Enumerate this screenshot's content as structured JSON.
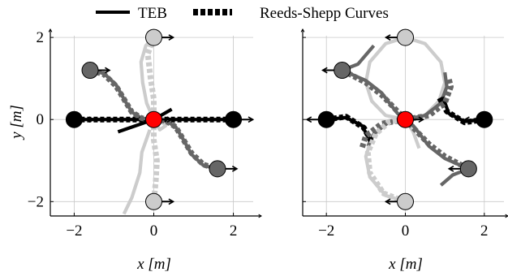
{
  "legend": {
    "teb_label": "TEB",
    "rs_label": "Reeds-Shepp Curves",
    "placement": "top-center"
  },
  "colors": {
    "black": "#000000",
    "dark_gray": "#666666",
    "light_gray": "#cccccc",
    "red": "#ff0000",
    "grid": "#c8c8c8"
  },
  "chart_data": [
    {
      "type": "line",
      "panel": "left",
      "xlabel": "x [m]",
      "ylabel": "y [m]",
      "xlim": [
        -2.6,
        2.6
      ],
      "ylim": [
        -2.35,
        2.2
      ],
      "xticks": [
        -2,
        0,
        2
      ],
      "xtick_labels": [
        "−2",
        "0",
        "2"
      ],
      "yticks": [
        -2,
        0,
        2
      ],
      "ytick_labels": [
        "−2",
        "0",
        "2"
      ],
      "grid": true,
      "goal": {
        "x": 0,
        "y": 0,
        "theta_deg": 0
      },
      "starts": [
        {
          "x": -2.0,
          "y": 0.0,
          "theta_deg": 0,
          "shade": "black"
        },
        {
          "x": 2.0,
          "y": 0.0,
          "theta_deg": 0,
          "shade": "black"
        },
        {
          "x": -1.6,
          "y": 1.2,
          "theta_deg": 0,
          "shade": "dark_gray"
        },
        {
          "x": 1.6,
          "y": -1.2,
          "theta_deg": 0,
          "shade": "dark_gray"
        },
        {
          "x": 0.0,
          "y": 2.0,
          "theta_deg": 0,
          "shade": "light_gray"
        },
        {
          "x": 0.0,
          "y": -2.0,
          "theta_deg": 0,
          "shade": "light_gray"
        }
      ],
      "series": [
        {
          "kind": "teb",
          "shade": "black",
          "points": [
            [
              -2.0,
              0.0
            ],
            [
              -1.0,
              0.0
            ],
            [
              0.0,
              0.0
            ]
          ]
        },
        {
          "kind": "teb",
          "shade": "black",
          "points": [
            [
              2.0,
              0.0
            ],
            [
              1.0,
              0.0
            ],
            [
              0.0,
              0.0
            ]
          ]
        },
        {
          "kind": "teb",
          "shade": "black",
          "points": [
            [
              0.45,
              0.25
            ],
            [
              0.0,
              0.0
            ],
            [
              -0.9,
              -0.3
            ]
          ]
        },
        {
          "kind": "teb",
          "shade": "dark_gray",
          "points": [
            [
              -1.6,
              1.2
            ],
            [
              -1.25,
              1.12
            ],
            [
              -0.95,
              0.85
            ],
            [
              -0.75,
              0.5
            ],
            [
              -0.55,
              0.18
            ],
            [
              -0.3,
              0.03
            ],
            [
              0.0,
              0.0
            ]
          ]
        },
        {
          "kind": "teb",
          "shade": "dark_gray",
          "points": [
            [
              0.0,
              0.0
            ],
            [
              0.3,
              -0.03
            ],
            [
              0.55,
              -0.18
            ],
            [
              0.75,
              -0.5
            ],
            [
              0.95,
              -0.85
            ],
            [
              1.25,
              -1.12
            ],
            [
              1.6,
              -1.2
            ]
          ]
        },
        {
          "kind": "teb",
          "shade": "light_gray",
          "points": [
            [
              0.0,
              2.0
            ],
            [
              -0.2,
              1.8
            ],
            [
              -0.32,
              1.4
            ],
            [
              -0.28,
              0.9
            ],
            [
              -0.18,
              0.4
            ],
            [
              0.0,
              0.0
            ]
          ]
        },
        {
          "kind": "teb",
          "shade": "light_gray",
          "points": [
            [
              0.0,
              0.0
            ],
            [
              0.15,
              -0.25
            ],
            [
              0.3,
              -0.15
            ],
            [
              0.2,
              -0.05
            ]
          ]
        },
        {
          "kind": "teb",
          "shade": "light_gray",
          "points": [
            [
              -0.1,
              -0.25
            ],
            [
              -0.3,
              -0.8
            ],
            [
              -0.35,
              -1.3
            ],
            [
              -0.55,
              -1.9
            ],
            [
              -0.75,
              -2.3
            ]
          ]
        },
        {
          "kind": "rs",
          "shade": "black",
          "points": [
            [
              -2.0,
              0.0
            ],
            [
              0.0,
              0.0
            ]
          ]
        },
        {
          "kind": "rs",
          "shade": "black",
          "points": [
            [
              2.0,
              0.0
            ],
            [
              0.0,
              0.0
            ]
          ]
        },
        {
          "kind": "rs",
          "shade": "dark_gray",
          "points": [
            [
              -1.6,
              1.2
            ],
            [
              -1.25,
              1.1
            ],
            [
              -0.95,
              0.82
            ],
            [
              -0.75,
              0.5
            ],
            [
              -0.55,
              0.18
            ],
            [
              -0.3,
              0.03
            ],
            [
              0.0,
              0.0
            ]
          ]
        },
        {
          "kind": "rs",
          "shade": "dark_gray",
          "points": [
            [
              0.0,
              0.0
            ],
            [
              0.3,
              -0.03
            ],
            [
              0.55,
              -0.18
            ],
            [
              0.75,
              -0.5
            ],
            [
              0.95,
              -0.82
            ],
            [
              1.25,
              -1.1
            ],
            [
              1.6,
              -1.2
            ]
          ]
        },
        {
          "kind": "rs",
          "shade": "light_gray",
          "points": [
            [
              0.0,
              2.0
            ],
            [
              -0.15,
              1.6
            ],
            [
              -0.08,
              1.0
            ],
            [
              0.0,
              0.5
            ],
            [
              0.0,
              0.0
            ]
          ]
        },
        {
          "kind": "rs",
          "shade": "light_gray",
          "points": [
            [
              0.0,
              0.0
            ],
            [
              0.0,
              -0.5
            ],
            [
              0.08,
              -1.0
            ],
            [
              0.05,
              -1.5
            ],
            [
              0.0,
              -2.0
            ]
          ]
        }
      ]
    },
    {
      "type": "line",
      "panel": "right",
      "xlabel": "x [m]",
      "ylabel": "",
      "xlim": [
        -2.6,
        2.6
      ],
      "ylim": [
        -2.35,
        2.2
      ],
      "xticks": [
        -2,
        0,
        2
      ],
      "xtick_labels": [
        "−2",
        "0",
        "2"
      ],
      "yticks": [
        -2,
        0,
        2
      ],
      "grid": true,
      "goal": {
        "x": 0,
        "y": 0,
        "theta_deg": 0
      },
      "starts": [
        {
          "x": -2.0,
          "y": 0.0,
          "theta_deg": 180,
          "shade": "black"
        },
        {
          "x": 2.0,
          "y": 0.0,
          "theta_deg": 180,
          "shade": "black"
        },
        {
          "x": -1.6,
          "y": 1.2,
          "theta_deg": 180,
          "shade": "dark_gray"
        },
        {
          "x": 1.6,
          "y": -1.2,
          "theta_deg": 180,
          "shade": "dark_gray"
        },
        {
          "x": 0.0,
          "y": 2.0,
          "theta_deg": 180,
          "shade": "light_gray"
        },
        {
          "x": 0.0,
          "y": -2.0,
          "theta_deg": 180,
          "shade": "light_gray"
        }
      ],
      "series": [
        {
          "kind": "teb",
          "shade": "light_gray",
          "points": [
            [
              0.0,
              2.0
            ],
            [
              0.5,
              1.85
            ],
            [
              0.9,
              1.4
            ],
            [
              1.0,
              0.9
            ],
            [
              0.85,
              0.45
            ],
            [
              0.5,
              0.1
            ],
            [
              0.0,
              0.0
            ]
          ]
        },
        {
          "kind": "teb",
          "shade": "light_gray",
          "points": [
            [
              0.0,
              2.0
            ],
            [
              -0.5,
              1.85
            ],
            [
              -0.9,
              1.4
            ],
            [
              -1.0,
              0.9
            ],
            [
              -0.85,
              0.45
            ],
            [
              -0.5,
              0.1
            ],
            [
              0.0,
              0.0
            ]
          ]
        },
        {
          "kind": "teb",
          "shade": "light_gray",
          "points": [
            [
              0.0,
              -2.0
            ],
            [
              -0.5,
              -1.85
            ],
            [
              -0.9,
              -1.4
            ],
            [
              -1.0,
              -0.9
            ],
            [
              -0.85,
              -0.45
            ],
            [
              -0.5,
              -0.1
            ],
            [
              0.0,
              0.0
            ]
          ]
        },
        {
          "kind": "teb",
          "shade": "light_gray",
          "points": [
            [
              0.0,
              0.0
            ],
            [
              0.2,
              -0.3
            ],
            [
              0.35,
              -0.7
            ]
          ]
        },
        {
          "kind": "teb",
          "shade": "dark_gray",
          "points": [
            [
              -1.6,
              1.2
            ],
            [
              -1.2,
              1.35
            ],
            [
              -0.8,
              1.8
            ]
          ]
        },
        {
          "kind": "teb",
          "shade": "dark_gray",
          "points": [
            [
              -1.6,
              1.2
            ],
            [
              -1.0,
              0.95
            ],
            [
              -0.6,
              0.65
            ],
            [
              -0.4,
              0.4
            ],
            [
              -0.2,
              0.15
            ],
            [
              0.0,
              0.0
            ]
          ]
        },
        {
          "kind": "teb",
          "shade": "dark_gray",
          "points": [
            [
              0.0,
              0.0
            ],
            [
              0.5,
              0.1
            ],
            [
              0.9,
              0.4
            ],
            [
              1.05,
              0.8
            ],
            [
              1.0,
              1.15
            ]
          ]
        },
        {
          "kind": "teb",
          "shade": "dark_gray",
          "points": [
            [
              1.6,
              -1.2
            ],
            [
              1.2,
              -1.35
            ],
            [
              0.9,
              -1.6
            ]
          ]
        },
        {
          "kind": "teb",
          "shade": "dark_gray",
          "points": [
            [
              1.6,
              -1.2
            ],
            [
              1.0,
              -0.95
            ],
            [
              0.6,
              -0.65
            ],
            [
              0.4,
              -0.4
            ],
            [
              0.2,
              -0.15
            ],
            [
              0.0,
              0.0
            ]
          ]
        },
        {
          "kind": "teb",
          "shade": "dark_gray",
          "points": [
            [
              0.0,
              0.0
            ],
            [
              -0.4,
              -0.05
            ],
            [
              -0.8,
              -0.35
            ],
            [
              -0.95,
              -0.65
            ]
          ]
        },
        {
          "kind": "teb",
          "shade": "black",
          "points": [
            [
              -2.0,
              0.0
            ],
            [
              -1.5,
              0.05
            ],
            [
              -1.1,
              -0.15
            ],
            [
              -0.9,
              -0.5
            ]
          ]
        },
        {
          "kind": "teb",
          "shade": "black",
          "points": [
            [
              2.0,
              0.0
            ],
            [
              1.5,
              -0.05
            ],
            [
              1.1,
              0.15
            ],
            [
              0.95,
              0.55
            ]
          ]
        },
        {
          "kind": "rs",
          "shade": "black",
          "points": [
            [
              -2.0,
              0.0
            ],
            [
              -1.5,
              0.07
            ],
            [
              -1.05,
              -0.2
            ],
            [
              -0.85,
              -0.55
            ]
          ]
        },
        {
          "kind": "rs",
          "shade": "black",
          "points": [
            [
              2.0,
              0.0
            ],
            [
              1.5,
              -0.07
            ],
            [
              1.05,
              0.2
            ],
            [
              0.85,
              0.55
            ]
          ]
        },
        {
          "kind": "rs",
          "shade": "dark_gray",
          "points": [
            [
              -1.6,
              1.2
            ],
            [
              -1.0,
              0.9
            ],
            [
              -0.6,
              0.6
            ],
            [
              -0.3,
              0.3
            ],
            [
              0.0,
              0.0
            ]
          ]
        },
        {
          "kind": "rs",
          "shade": "dark_gray",
          "points": [
            [
              1.6,
              -1.2
            ],
            [
              1.0,
              -0.9
            ],
            [
              0.6,
              -0.6
            ],
            [
              0.3,
              -0.3
            ],
            [
              0.0,
              0.0
            ]
          ]
        },
        {
          "kind": "rs",
          "shade": "dark_gray",
          "points": [
            [
              0.0,
              0.0
            ],
            [
              0.6,
              0.1
            ],
            [
              1.0,
              0.4
            ],
            [
              1.15,
              0.8
            ],
            [
              1.1,
              1.0
            ]
          ]
        },
        {
          "kind": "rs",
          "shade": "dark_gray",
          "points": [
            [
              0.0,
              0.0
            ],
            [
              -0.6,
              -0.1
            ],
            [
              -1.0,
              -0.4
            ],
            [
              -1.1,
              -0.7
            ]
          ]
        },
        {
          "kind": "rs",
          "shade": "light_gray",
          "points": [
            [
              0.0,
              -2.0
            ],
            [
              -0.55,
              -1.8
            ],
            [
              -0.9,
              -1.3
            ],
            [
              -0.95,
              -0.8
            ],
            [
              -0.75,
              -0.35
            ],
            [
              -0.4,
              -0.05
            ],
            [
              0.0,
              0.0
            ]
          ]
        }
      ]
    }
  ]
}
